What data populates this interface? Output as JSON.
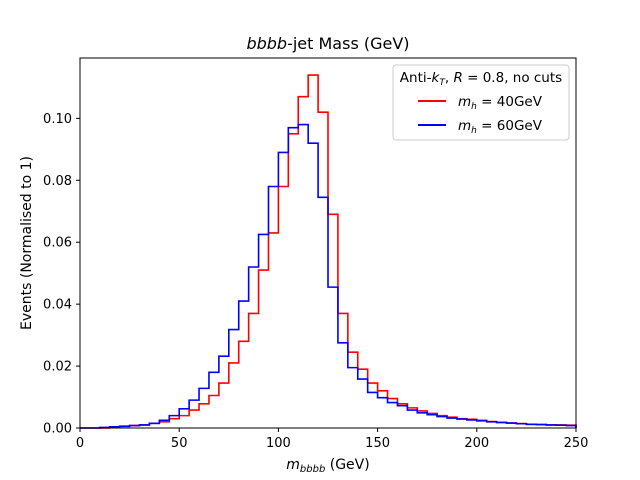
{
  "chart_data": {
    "type": "step-histogram",
    "title": "bbbb-jet Mass (GeV)",
    "xlabel": "m_bbbb (GeV)",
    "ylabel": "Events (Normalised to 1)",
    "xlim": [
      0,
      250
    ],
    "ylim": [
      0,
      0.1195
    ],
    "xticks": [
      0,
      50,
      100,
      150,
      200,
      250
    ],
    "yticks": [
      0.0,
      0.02,
      0.04,
      0.06,
      0.08,
      0.1
    ],
    "yticklabels": [
      "0.00",
      "0.02",
      "0.04",
      "0.06",
      "0.08",
      "0.10"
    ],
    "grid": false,
    "legend": {
      "title": "Anti-k_T, R = 0.8, no cuts",
      "position": "upper right"
    },
    "bin_edges": [
      0,
      5,
      10,
      15,
      20,
      25,
      30,
      35,
      40,
      45,
      50,
      55,
      60,
      65,
      70,
      75,
      80,
      85,
      90,
      95,
      100,
      105,
      110,
      115,
      120,
      125,
      130,
      135,
      140,
      145,
      150,
      155,
      160,
      165,
      170,
      175,
      180,
      185,
      190,
      195,
      200,
      205,
      210,
      215,
      220,
      225,
      230,
      235,
      240,
      245,
      250
    ],
    "series": [
      {
        "name": "m_h = 40GeV",
        "color": "#ff0000",
        "values": [
          0.0,
          0.0,
          0.0,
          0.0003,
          0.0005,
          0.0008,
          0.001,
          0.0015,
          0.002,
          0.003,
          0.004,
          0.0058,
          0.0078,
          0.0105,
          0.0145,
          0.021,
          0.028,
          0.037,
          0.051,
          0.063,
          0.078,
          0.095,
          0.107,
          0.114,
          0.102,
          0.069,
          0.037,
          0.0245,
          0.019,
          0.0145,
          0.012,
          0.0095,
          0.0078,
          0.0065,
          0.0055,
          0.0047,
          0.004,
          0.0035,
          0.003,
          0.0028,
          0.0025,
          0.0021,
          0.0018,
          0.0016,
          0.0014,
          0.0012,
          0.0011,
          0.001,
          0.001,
          0.0009
        ]
      },
      {
        "name": "m_h = 60GeV",
        "color": "#0000ff",
        "values": [
          0.0,
          0.0,
          0.0002,
          0.0004,
          0.0006,
          0.0008,
          0.001,
          0.0015,
          0.0025,
          0.004,
          0.0062,
          0.009,
          0.0128,
          0.018,
          0.0232,
          0.0318,
          0.041,
          0.052,
          0.0625,
          0.078,
          0.089,
          0.097,
          0.098,
          0.092,
          0.0745,
          0.0455,
          0.0275,
          0.0195,
          0.0158,
          0.0115,
          0.0098,
          0.0082,
          0.0072,
          0.0058,
          0.0049,
          0.0043,
          0.0037,
          0.0032,
          0.0029,
          0.0026,
          0.0023,
          0.002,
          0.0018,
          0.0016,
          0.0014,
          0.0012,
          0.0011,
          0.001,
          0.0009,
          0.0008
        ]
      }
    ]
  }
}
